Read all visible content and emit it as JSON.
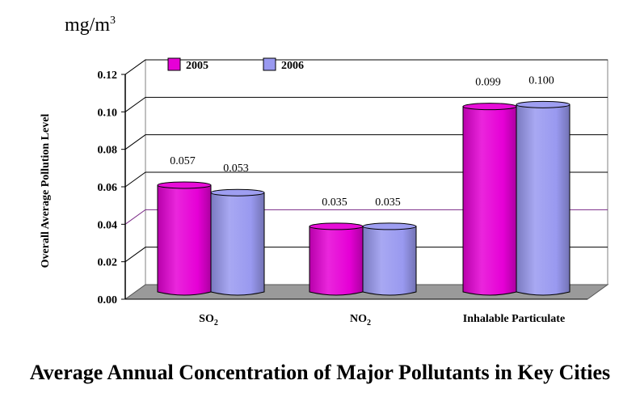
{
  "unit_label": {
    "base": "mg/m",
    "sup": "3"
  },
  "caption": "Average Annual Concentration of Major Pollutants in Key Cities",
  "chart_data": {
    "type": "bar",
    "title": "Average Annual Concentration of Major Pollutants in Key Cities",
    "ylabel": "Overall Average Pollution Level",
    "xlabel": "",
    "ylim": [
      0,
      0.12
    ],
    "yticks": [
      "0.00",
      "0.02",
      "0.04",
      "0.06",
      "0.08",
      "0.10",
      "0.12"
    ],
    "categories": [
      {
        "base": "SO",
        "sub": "2"
      },
      {
        "base": "NO",
        "sub": "2"
      },
      {
        "base": "Inhalable Particulate",
        "sub": ""
      }
    ],
    "series": [
      {
        "name": "2005",
        "values": [
          0.057,
          0.035,
          0.099
        ],
        "labels": [
          "0.057",
          "0.035",
          "0.099"
        ],
        "color": "#e600d6"
      },
      {
        "name": "2006",
        "values": [
          0.053,
          0.035,
          0.1
        ],
        "labels": [
          "0.053",
          "0.035",
          "0.100"
        ],
        "color": "#9999f0"
      }
    ],
    "legend": "top-left",
    "grid": true
  }
}
